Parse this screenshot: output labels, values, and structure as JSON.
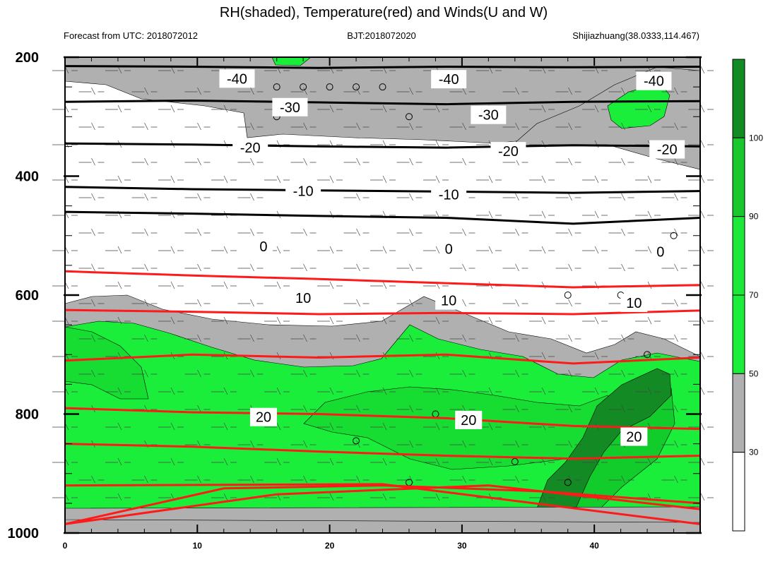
{
  "chart_data": {
    "type": "contour",
    "title": "RH(shaded), Temperature(red) and Winds(U and W)",
    "subtitle_left": "Forecast from UTC: 2018072012",
    "subtitle_center": "BJT:2018072020",
    "subtitle_right": "Shijiazhuang(38.0333,114.467)",
    "x_ticks": [
      "0",
      "10",
      "20",
      "30",
      "40"
    ],
    "x_tick_values": [
      0,
      10,
      20,
      30,
      40
    ],
    "xlim": [
      0,
      48
    ],
    "y_ticks": [
      "200",
      "400",
      "600",
      "800",
      "1000"
    ],
    "y_tick_values": [
      200,
      400,
      600,
      800,
      1000
    ],
    "ylim": [
      1000,
      200
    ],
    "colorbar": {
      "labels": [
        "30",
        "50",
        "70",
        "90",
        "100"
      ],
      "colors": [
        "#ffffff",
        "#b0b0b0",
        "#1aee3a",
        "#1ce83a",
        "#18c82e",
        "#128c22"
      ]
    },
    "shading_colors": {
      "rh_30_50": "#b0b0b0",
      "rh_50_70": "#1aee3a",
      "rh_70_90": "#17dd33",
      "rh_90_100": "#12cc2c",
      "rh_above_100": "#138a24"
    },
    "temperature_contours": [
      {
        "level": "-40",
        "color": "#000000",
        "label_pos": [
          [
            13,
            236
          ],
          [
            29,
            237
          ],
          [
            44.5,
            240
          ]
        ],
        "y": [
          215,
          216,
          218,
          216,
          217,
          216
        ]
      },
      {
        "level": "-30",
        "color": "#000000",
        "label_pos": [
          [
            17,
            284
          ],
          [
            32,
            297
          ]
        ],
        "y": [
          275,
          273,
          276,
          279,
          275,
          274
        ]
      },
      {
        "level": "-20",
        "color": "#000000",
        "label_pos": [
          [
            14,
            352
          ],
          [
            33.5,
            358
          ],
          [
            45.5,
            355
          ]
        ],
        "y": [
          345,
          347,
          350,
          352,
          348,
          350
        ]
      },
      {
        "level": "-10",
        "color": "#000000",
        "label_pos": [
          [
            18,
            425
          ],
          [
            29,
            431
          ]
        ],
        "y": [
          418,
          422,
          424,
          426,
          428,
          425
        ]
      },
      {
        "level": "0",
        "color": "#000000",
        "label_pos": [
          [
            15,
            518
          ],
          [
            29,
            522
          ],
          [
            45,
            527
          ]
        ],
        "y": [
          460,
          463,
          467,
          470,
          480,
          470
        ]
      },
      {
        "level": "10",
        "color": "#ff1a1a",
        "label_pos": [
          [
            18,
            605
          ],
          [
            29,
            609
          ],
          [
            43,
            613
          ]
        ],
        "y": [
          560,
          567,
          573,
          580,
          587,
          583
        ]
      },
      {
        "level": "20",
        "color": "#ff1a1a",
        "label_pos": [
          [
            15,
            805
          ],
          [
            30.5,
            810
          ],
          [
            43,
            838
          ]
        ],
        "y": [
          790,
          797,
          800,
          807,
          820,
          825
        ]
      }
    ],
    "red_lines_extra": [
      {
        "name": "t15",
        "y": [
          625,
          628,
          632,
          630,
          632,
          626
        ]
      },
      {
        "name": "t18",
        "y": [
          710,
          700,
          705,
          700,
          715,
          705
        ]
      },
      {
        "name": "t22",
        "y": [
          850,
          855,
          863,
          870,
          875,
          870
        ]
      },
      {
        "name": "t26a",
        "y": [
          920,
          918,
          985
        ]
      },
      {
        "name": "t26b",
        "y": [
          985,
          935,
          920,
          960
        ]
      },
      {
        "name": "t26c",
        "y": [
          985,
          925,
          920,
          930,
          950
        ]
      }
    ],
    "grid": true
  }
}
